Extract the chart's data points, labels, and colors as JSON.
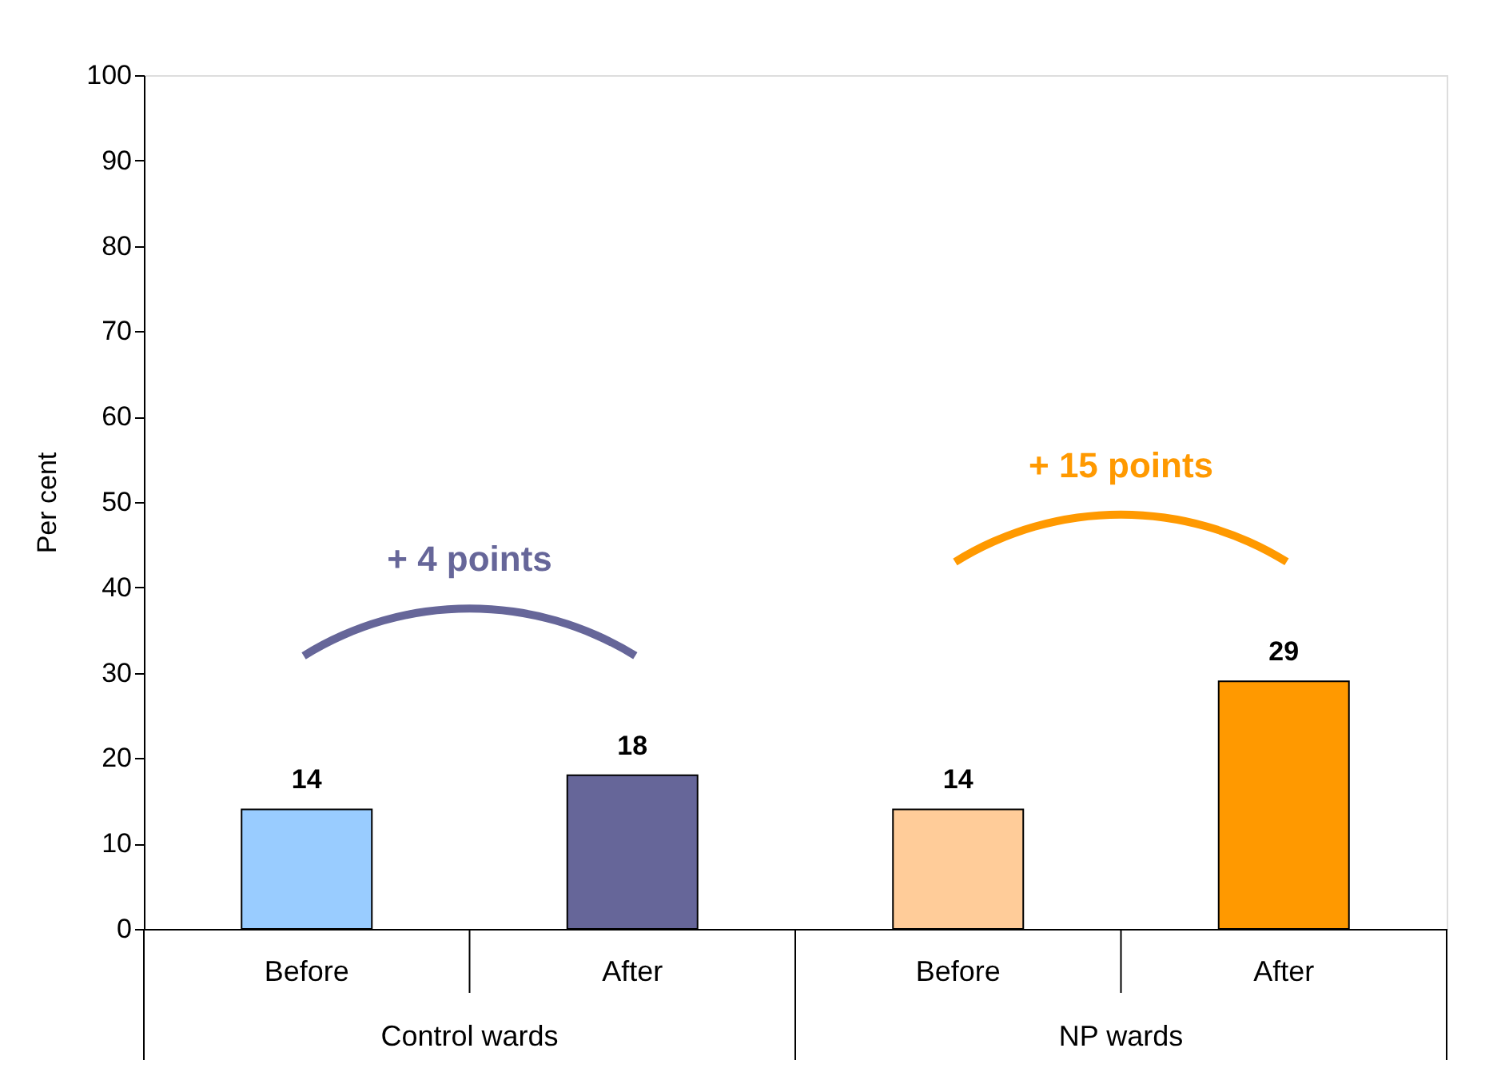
{
  "chart_data": {
    "type": "bar",
    "ylabel": "Per cent",
    "categories": [
      "Before",
      "After",
      "Before",
      "After"
    ],
    "values": [
      14,
      18,
      14,
      29
    ],
    "colors": [
      "#99ccff",
      "#666699",
      "#ffcc99",
      "#ff9900"
    ],
    "ylim": [
      0,
      100
    ],
    "yticks": [
      0,
      10,
      20,
      30,
      40,
      50,
      60,
      70,
      80,
      90,
      100
    ],
    "data_labels": true,
    "grid": false,
    "annotations": [
      "+ 4 points",
      "+ 15 points",
      "Control wards",
      "NP wards"
    ]
  }
}
